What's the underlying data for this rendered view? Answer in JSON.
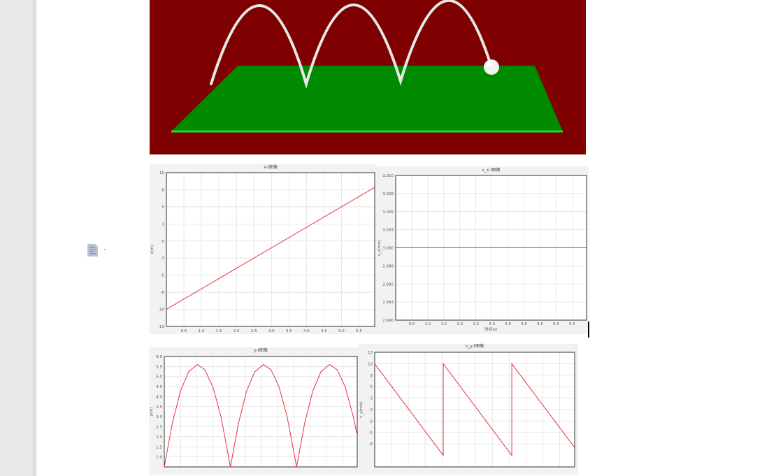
{
  "document": {
    "paragraph_icon": "document-options-icon",
    "scene": {
      "background": "#7f0000",
      "ground": "#008a00",
      "ground_edge": "#22dd22",
      "trajectory": "#e8e8e8",
      "ball": "#f0f0f0"
    }
  },
  "chart_data": [
    {
      "id": "x-t",
      "type": "line",
      "title": "x-t图像",
      "xlabel": "",
      "ylabel": "x(m)",
      "xlim": [
        0,
        5.95
      ],
      "ylim": [
        -12.5,
        10
      ],
      "xticks": [
        0.5,
        1.0,
        1.5,
        2.0,
        2.5,
        3.0,
        3.5,
        4.0,
        4.5,
        5.0,
        5.5
      ],
      "xtick_labels": [
        "0.5",
        "1.0",
        "1.5",
        "2.0",
        "2.5",
        "3.0",
        "3.5",
        "4.0",
        "4.5",
        "5.0",
        "5.5"
      ],
      "yticks": [
        10,
        7.5,
        5,
        2.5,
        0,
        -2.5,
        -5,
        -7.5,
        -10,
        -12.5
      ],
      "ytick_labels": [
        "10",
        "8",
        "5",
        "3",
        "0",
        "-3",
        "-5",
        "-8",
        "-10",
        "-13"
      ],
      "grid": true,
      "color": "#e8323c",
      "points": [
        [
          0,
          -10
        ],
        [
          5.95,
          7.85
        ]
      ]
    },
    {
      "id": "vx-t",
      "type": "line",
      "title": "v_x-t图像",
      "xlabel": "时间(s)",
      "ylabel": "v_x(m/s)",
      "xlim": [
        0,
        5.95
      ],
      "ylim": [
        2.99,
        3.01
      ],
      "xticks": [
        0.5,
        1.0,
        1.5,
        2.0,
        2.5,
        3.0,
        3.5,
        4.0,
        4.5,
        5.0,
        5.5
      ],
      "xtick_labels": [
        "0.5",
        "1.0",
        "1.5",
        "2.0",
        "2.5",
        "3.0",
        "3.5",
        "4.0",
        "4.5",
        "5.0",
        "5.5"
      ],
      "yticks": [
        3.01,
        3.0075,
        3.005,
        3.0025,
        3.0,
        2.9975,
        2.995,
        2.9925,
        2.99
      ],
      "ytick_labels": [
        "3.010",
        "3.008",
        "3.005",
        "3.003",
        "3.000",
        "2.998",
        "2.995",
        "2.993",
        "2.990"
      ],
      "grid": true,
      "color": "#e8323c",
      "points": [
        [
          0,
          3.0
        ],
        [
          5.95,
          3.0
        ]
      ]
    },
    {
      "id": "y-t",
      "type": "line",
      "title": "y-t图像",
      "xlabel": "",
      "ylabel": "y(m)",
      "xlim": [
        0,
        5.95
      ],
      "ylim": [
        0.5,
        6.0
      ],
      "xticks": [
        0.5,
        1.0,
        1.5,
        2.0,
        2.5,
        3.0,
        3.5,
        4.0,
        4.5,
        5.0,
        5.5
      ],
      "yticks": [
        6.0,
        5.5,
        5.0,
        4.5,
        4.0,
        3.5,
        3.0,
        2.5,
        2.0,
        1.5,
        1.0
      ],
      "ytick_labels": [
        "6.0",
        "5.5",
        "5.0",
        "4.5",
        "4.0",
        "3.5",
        "3.0",
        "2.5",
        "2.0",
        "1.5",
        "1.0"
      ],
      "grid": true,
      "color": "#e8323c",
      "points": [
        [
          0,
          0.5
        ],
        [
          0.25,
          2.69
        ],
        [
          0.5,
          4.28
        ],
        [
          0.75,
          5.24
        ],
        [
          1.02,
          5.6
        ],
        [
          1.25,
          5.34
        ],
        [
          1.5,
          4.48
        ],
        [
          1.75,
          2.99
        ],
        [
          2.04,
          0.5
        ],
        [
          2.29,
          2.69
        ],
        [
          2.54,
          4.28
        ],
        [
          2.79,
          5.24
        ],
        [
          3.06,
          5.6
        ],
        [
          3.29,
          5.34
        ],
        [
          3.54,
          4.48
        ],
        [
          3.79,
          2.99
        ],
        [
          4.08,
          0.5
        ],
        [
          4.33,
          2.69
        ],
        [
          4.58,
          4.28
        ],
        [
          4.83,
          5.24
        ],
        [
          5.1,
          5.6
        ],
        [
          5.33,
          5.34
        ],
        [
          5.58,
          4.48
        ],
        [
          5.83,
          2.99
        ],
        [
          5.95,
          2.07
        ]
      ]
    },
    {
      "id": "vy-t",
      "type": "line",
      "title": "v_y-t图像",
      "xlabel": "",
      "ylabel": "v_y(m/s)",
      "xlim": [
        0,
        5.95
      ],
      "ylim": [
        -12.5,
        12.5
      ],
      "xticks": [
        0.5,
        1.0,
        1.5,
        2.0,
        2.5,
        3.0,
        3.5,
        4.0,
        4.5,
        5.0,
        5.5
      ],
      "yticks": [
        12.5,
        10,
        7.5,
        5,
        2.5,
        0,
        -2.5,
        -5,
        -7.5
      ],
      "ytick_labels": [
        "13",
        "10",
        "8",
        "5",
        "3",
        "0",
        "-3",
        "-5",
        "-8"
      ],
      "grid": true,
      "color": "#e8323c",
      "points": [
        [
          0,
          10
        ],
        [
          2.04,
          -10
        ],
        [
          2.04,
          10
        ],
        [
          4.08,
          -10
        ],
        [
          4.08,
          10
        ],
        [
          5.95,
          -8.3
        ]
      ]
    }
  ]
}
